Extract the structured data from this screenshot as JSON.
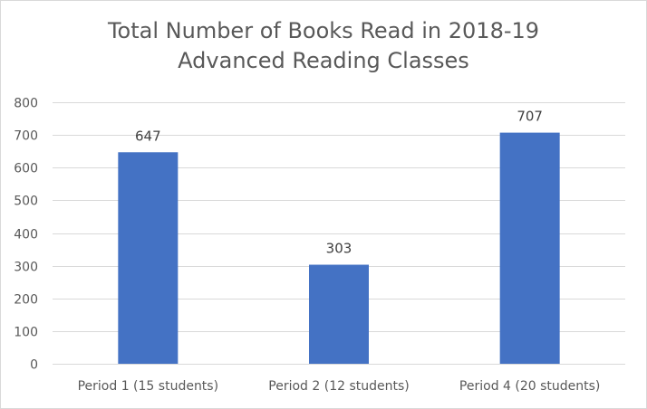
{
  "chart_data": {
    "type": "bar",
    "title_lines": [
      "Total Number of Books Read in 2018-19",
      "Advanced Reading Classes"
    ],
    "categories": [
      "Period 1 (15 students)",
      "Period 2 (12 students)",
      "Period 4 (20 students)"
    ],
    "values": [
      647,
      303,
      707
    ],
    "data_labels": [
      "647",
      "303",
      "707"
    ],
    "ylim": [
      0,
      800
    ],
    "yticks": [
      0,
      100,
      200,
      300,
      400,
      500,
      600,
      700,
      800
    ],
    "grid": true,
    "legend": "none",
    "bar_color": "#4472c4",
    "grid_color": "#d9d9d9"
  }
}
